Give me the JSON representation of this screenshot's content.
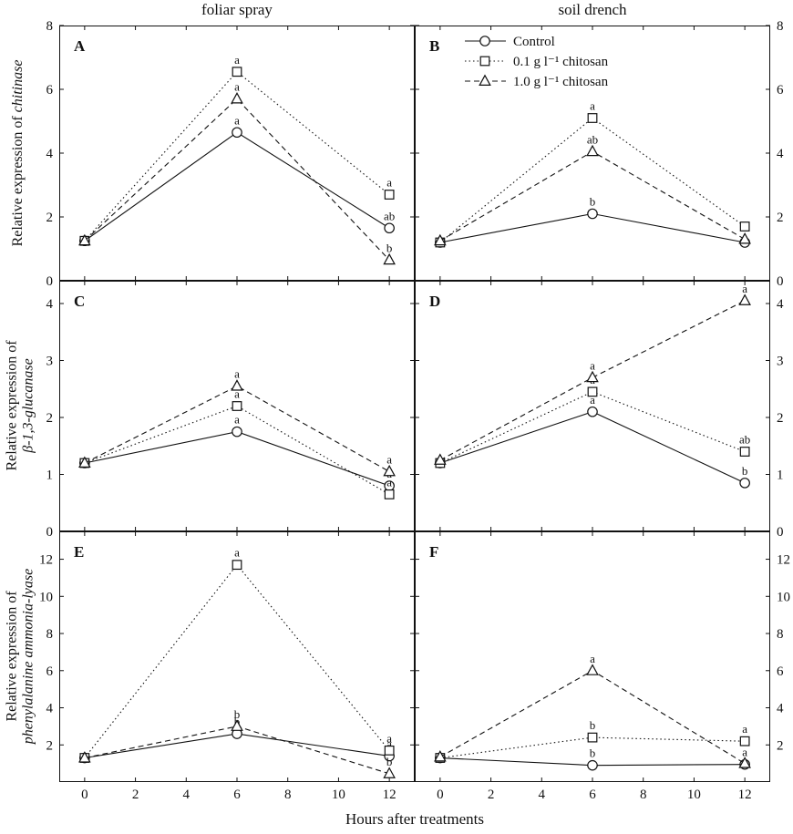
{
  "chart_data": {
    "type": "line",
    "column_titles": [
      "foliar spray",
      "soil drench"
    ],
    "xlabel": "Hours after treatments",
    "x": [
      0,
      6,
      12
    ],
    "xlim": [
      -1,
      13
    ],
    "xticks": [
      0,
      2,
      4,
      6,
      8,
      10,
      12
    ],
    "legend": [
      "Control",
      "0.1 g l⁻¹ chitosan",
      "1.0 g l⁻¹ chitosan"
    ],
    "legend_position": "top of panel B",
    "series_styles": [
      {
        "name": "Control",
        "marker": "circle",
        "dash": "solid"
      },
      {
        "name": "0.1 g l⁻¹ chitosan",
        "marker": "square",
        "dash": "dotted"
      },
      {
        "name": "1.0 g l⁻¹ chitosan",
        "marker": "triangle",
        "dash": "dashed"
      }
    ],
    "rows": [
      {
        "ylabel_prefix": "Relative expression of",
        "ylabel_gene": "chitinase",
        "ylim": [
          0,
          8
        ],
        "yticks": [
          0,
          2,
          4,
          6,
          8
        ]
      },
      {
        "ylabel_prefix": "Relative expression of",
        "ylabel_gene": "β-1,3-glucanase",
        "ylim": [
          0,
          4.4
        ],
        "yticks": [
          0,
          1,
          2,
          3,
          4
        ]
      },
      {
        "ylabel_prefix": "Relative expression of",
        "ylabel_gene": "phenylalanine ammonia-lyase",
        "ylim": [
          0,
          13.5
        ],
        "yticks": [
          2,
          4,
          6,
          8,
          10,
          12
        ]
      }
    ],
    "panels": [
      {
        "letter": "A",
        "row": 0,
        "col": 0,
        "show_legend": false,
        "series": [
          {
            "name": "Control",
            "values": [
              1.25,
              4.65,
              1.65
            ],
            "labels": [
              "",
              "a",
              "ab"
            ]
          },
          {
            "name": "0.1 g l⁻¹ chitosan",
            "values": [
              1.25,
              6.55,
              2.7
            ],
            "labels": [
              "",
              "a",
              "a"
            ]
          },
          {
            "name": "1.0 g l⁻¹ chitosan",
            "values": [
              1.25,
              5.7,
              0.65
            ],
            "labels": [
              "",
              "a",
              "b"
            ]
          }
        ]
      },
      {
        "letter": "B",
        "row": 0,
        "col": 1,
        "show_legend": true,
        "series": [
          {
            "name": "Control",
            "values": [
              1.2,
              2.1,
              1.2
            ],
            "labels": [
              "",
              "b",
              ""
            ]
          },
          {
            "name": "0.1 g l⁻¹ chitosan",
            "values": [
              1.2,
              5.1,
              1.7
            ],
            "labels": [
              "",
              "a",
              ""
            ]
          },
          {
            "name": "1.0 g l⁻¹ chitosan",
            "values": [
              1.25,
              4.05,
              1.3
            ],
            "labels": [
              "",
              "ab",
              ""
            ]
          }
        ]
      },
      {
        "letter": "C",
        "row": 1,
        "col": 0,
        "show_legend": false,
        "series": [
          {
            "name": "Control",
            "values": [
              1.2,
              1.75,
              0.8
            ],
            "labels": [
              "",
              "a",
              "a"
            ]
          },
          {
            "name": "0.1 g l⁻¹ chitosan",
            "values": [
              1.2,
              2.2,
              0.65
            ],
            "labels": [
              "",
              "a",
              "a"
            ]
          },
          {
            "name": "1.0 g l⁻¹ chitosan",
            "values": [
              1.2,
              2.55,
              1.05
            ],
            "labels": [
              "",
              "a",
              "a"
            ]
          }
        ]
      },
      {
        "letter": "D",
        "row": 1,
        "col": 1,
        "show_legend": false,
        "series": [
          {
            "name": "Control",
            "values": [
              1.2,
              2.1,
              0.85
            ],
            "labels": [
              "",
              "a",
              "b"
            ]
          },
          {
            "name": "0.1 g l⁻¹ chitosan",
            "values": [
              1.2,
              2.45,
              1.4
            ],
            "labels": [
              "",
              "a",
              "ab"
            ]
          },
          {
            "name": "1.0 g l⁻¹ chitosan",
            "values": [
              1.25,
              2.7,
              4.05
            ],
            "labels": [
              "",
              "a",
              "a"
            ]
          }
        ]
      },
      {
        "letter": "E",
        "row": 2,
        "col": 0,
        "show_legend": false,
        "series": [
          {
            "name": "Control",
            "values": [
              1.3,
              2.6,
              1.4
            ],
            "labels": [
              "",
              "b",
              "a"
            ]
          },
          {
            "name": "0.1 g l⁻¹ chitosan",
            "values": [
              1.3,
              11.7,
              1.7
            ],
            "labels": [
              "",
              "a",
              "a"
            ]
          },
          {
            "name": "1.0 g l⁻¹ chitosan",
            "values": [
              1.3,
              3.0,
              0.45
            ],
            "labels": [
              "",
              "b",
              "b"
            ]
          }
        ]
      },
      {
        "letter": "F",
        "row": 2,
        "col": 1,
        "show_legend": false,
        "series": [
          {
            "name": "Control",
            "values": [
              1.3,
              0.9,
              0.95
            ],
            "labels": [
              "",
              "b",
              "a"
            ]
          },
          {
            "name": "0.1 g l⁻¹ chitosan",
            "values": [
              1.3,
              2.4,
              2.2
            ],
            "labels": [
              "",
              "b",
              "a"
            ]
          },
          {
            "name": "1.0 g l⁻¹ chitosan",
            "values": [
              1.35,
              6.0,
              1.0
            ],
            "labels": [
              "",
              "a",
              ""
            ]
          }
        ]
      }
    ]
  }
}
